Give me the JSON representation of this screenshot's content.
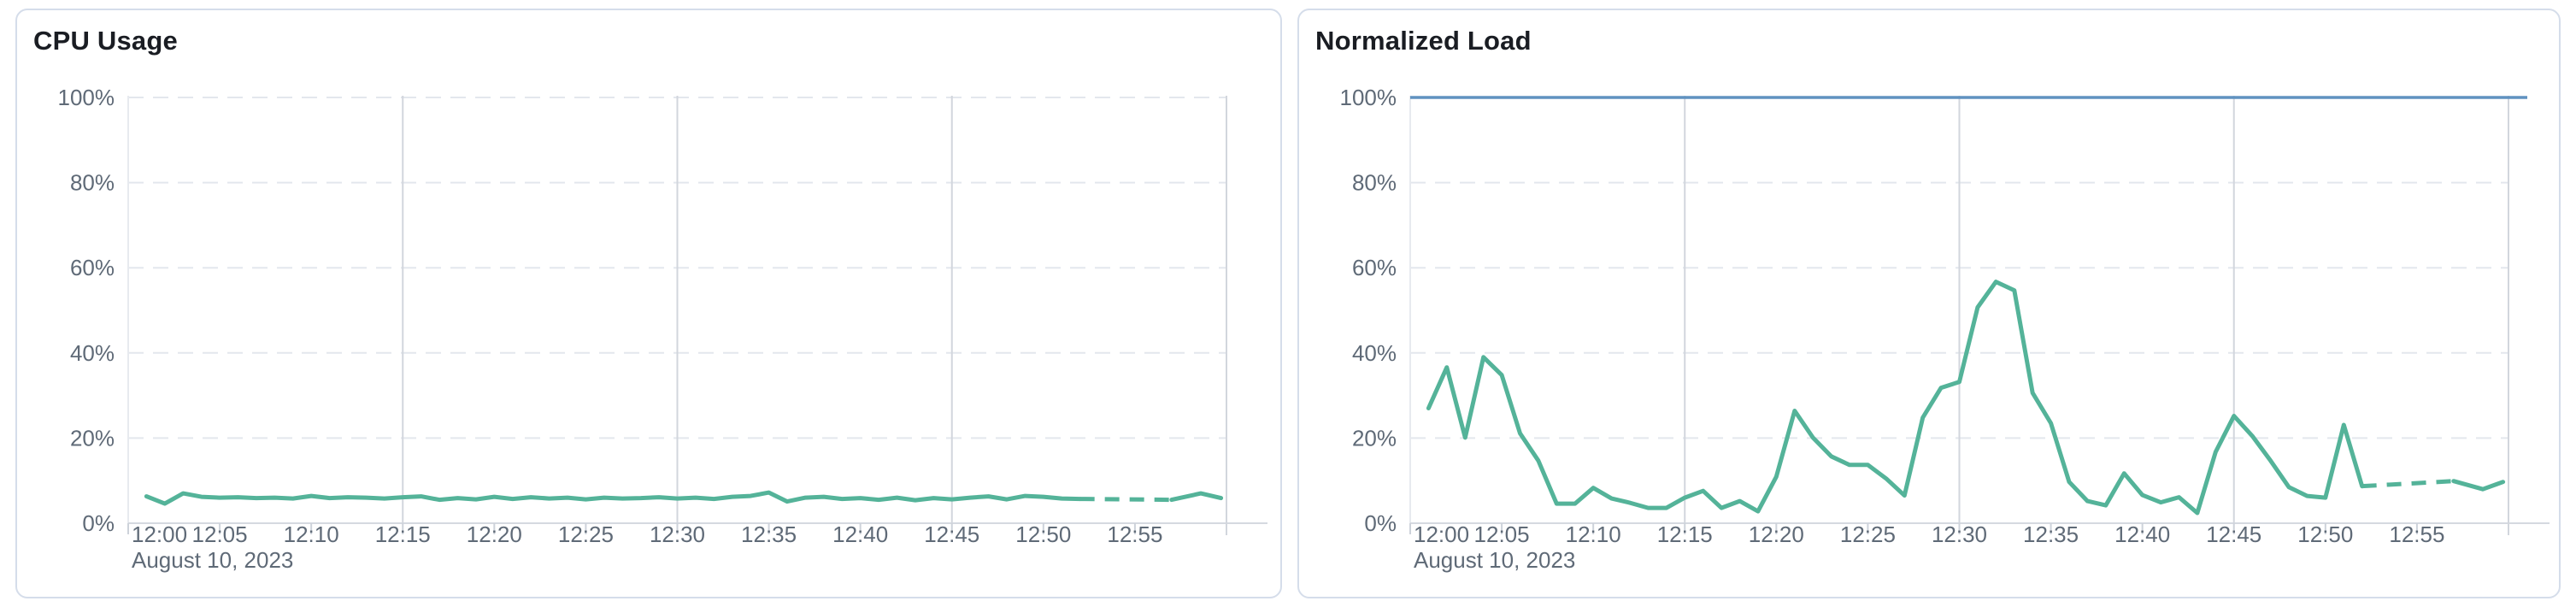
{
  "panels": [
    {
      "title": "CPU Usage"
    },
    {
      "title": "Normalized Load"
    }
  ],
  "date_annotation": "August 10, 2023",
  "colors": {
    "series_green": "#54B399",
    "limit_blue": "#6092C0",
    "grid_dashed": "#E3E7ED",
    "grid_vertical": "#D2D6DD",
    "axis_left_border": "#E7EAEF",
    "baseline": "#D5D9E0",
    "tick": "#CDD2DA",
    "label_text": "#5F6A77",
    "title_text": "#1A1D23",
    "panel_border": "#D5DDEA",
    "background": "#FFFFFF"
  },
  "chart_data": [
    {
      "type": "line",
      "title": "CPU Usage",
      "x_axis_date": "August 10, 2023",
      "x_tick_labels": [
        "12:00",
        "12:05",
        "12:10",
        "12:15",
        "12:20",
        "12:25",
        "12:30",
        "12:35",
        "12:40",
        "12:45",
        "12:50",
        "12:55"
      ],
      "x_tick_minutes": [
        0,
        5,
        10,
        15,
        20,
        25,
        30,
        35,
        40,
        45,
        50,
        55
      ],
      "x_domain_minutes": [
        0,
        60
      ],
      "ylim": [
        0,
        100
      ],
      "y_tick_labels": [
        "0%",
        "20%",
        "40%",
        "60%",
        "80%",
        "100%"
      ],
      "y_tick_values": [
        0,
        20,
        40,
        60,
        80,
        100
      ],
      "grid": "horizontal-dashed, vertical solid every 15 min",
      "legend": "none",
      "series": [
        {
          "name": "cpu-usage-percent",
          "color": "#54B399",
          "style": "solid with dashed interpolated gap 12:52-12:57",
          "dashed_gap_minutes": [
            52,
            57
          ],
          "points_minute_pct": [
            [
              1,
              6.3
            ],
            [
              2,
              4.6
            ],
            [
              3,
              7.0
            ],
            [
              4,
              6.2
            ],
            [
              5,
              6.0
            ],
            [
              6,
              6.1
            ],
            [
              7,
              5.9
            ],
            [
              8,
              6.0
            ],
            [
              9,
              5.8
            ],
            [
              10,
              6.4
            ],
            [
              11,
              5.9
            ],
            [
              12,
              6.1
            ],
            [
              13,
              6.0
            ],
            [
              14,
              5.8
            ],
            [
              15,
              6.1
            ],
            [
              16,
              6.3
            ],
            [
              17,
              5.5
            ],
            [
              18,
              5.9
            ],
            [
              19,
              5.6
            ],
            [
              20,
              6.2
            ],
            [
              21,
              5.7
            ],
            [
              22,
              6.1
            ],
            [
              23,
              5.8
            ],
            [
              24,
              6.0
            ],
            [
              25,
              5.6
            ],
            [
              26,
              6.0
            ],
            [
              27,
              5.8
            ],
            [
              28,
              5.9
            ],
            [
              29,
              6.1
            ],
            [
              30,
              5.8
            ],
            [
              31,
              6.0
            ],
            [
              32,
              5.7
            ],
            [
              33,
              6.2
            ],
            [
              34,
              6.4
            ],
            [
              35,
              7.2
            ],
            [
              36,
              5.1
            ],
            [
              37,
              6.0
            ],
            [
              38,
              6.2
            ],
            [
              39,
              5.7
            ],
            [
              40,
              5.9
            ],
            [
              41,
              5.5
            ],
            [
              42,
              6.0
            ],
            [
              43,
              5.4
            ],
            [
              44,
              5.9
            ],
            [
              45,
              5.6
            ],
            [
              46,
              6.0
            ],
            [
              47,
              6.3
            ],
            [
              48,
              5.6
            ],
            [
              49,
              6.4
            ],
            [
              50,
              6.2
            ],
            [
              51,
              5.8
            ],
            [
              52,
              5.7
            ],
            [
              57,
              5.5
            ],
            [
              58.6,
              7.0
            ],
            [
              59.7,
              5.9
            ]
          ]
        }
      ]
    },
    {
      "type": "line",
      "title": "Normalized Load",
      "x_axis_date": "August 10, 2023",
      "x_tick_labels": [
        "12:00",
        "12:05",
        "12:10",
        "12:15",
        "12:20",
        "12:25",
        "12:30",
        "12:35",
        "12:40",
        "12:45",
        "12:50",
        "12:55"
      ],
      "x_tick_minutes": [
        0,
        5,
        10,
        15,
        20,
        25,
        30,
        35,
        40,
        45,
        50,
        55
      ],
      "x_domain_minutes": [
        0,
        60
      ],
      "ylim": [
        0,
        100
      ],
      "y_tick_labels": [
        "0%",
        "20%",
        "40%",
        "60%",
        "80%",
        "100%"
      ],
      "y_tick_values": [
        0,
        20,
        40,
        60,
        80,
        100
      ],
      "grid": "horizontal-dashed, vertical solid every 15 min",
      "legend": "none",
      "series": [
        {
          "name": "normalized-load-percent",
          "color": "#54B399",
          "style": "solid with dashed interpolated gap 12:52-12:57",
          "dashed_gap_minutes": [
            52,
            57
          ],
          "points_minute_pct": [
            [
              1,
              27.0
            ],
            [
              2,
              36.6
            ],
            [
              3,
              20.1
            ],
            [
              4,
              39.0
            ],
            [
              5,
              34.8
            ],
            [
              6,
              21.1
            ],
            [
              7,
              14.7
            ],
            [
              8,
              4.6
            ],
            [
              9,
              4.6
            ],
            [
              10,
              8.3
            ],
            [
              11,
              5.8
            ],
            [
              12,
              4.8
            ],
            [
              13,
              3.6
            ],
            [
              14,
              3.6
            ],
            [
              15,
              6.0
            ],
            [
              16,
              7.6
            ],
            [
              17,
              3.6
            ],
            [
              18,
              5.2
            ],
            [
              19,
              2.8
            ],
            [
              20,
              10.9
            ],
            [
              21,
              26.4
            ],
            [
              22,
              20.1
            ],
            [
              23,
              15.7
            ],
            [
              24,
              13.7
            ],
            [
              25,
              13.7
            ],
            [
              26,
              10.5
            ],
            [
              27,
              6.5
            ],
            [
              28,
              24.8
            ],
            [
              29,
              31.8
            ],
            [
              30,
              33.2
            ],
            [
              31,
              50.7
            ],
            [
              32,
              56.7
            ],
            [
              33,
              54.7
            ],
            [
              34,
              30.6
            ],
            [
              35,
              23.5
            ],
            [
              36,
              9.7
            ],
            [
              37,
              5.2
            ],
            [
              38,
              4.2
            ],
            [
              39,
              11.7
            ],
            [
              40,
              6.6
            ],
            [
              41,
              4.9
            ],
            [
              42,
              6.1
            ],
            [
              43,
              2.4
            ],
            [
              44,
              16.7
            ],
            [
              45,
              25.2
            ],
            [
              46,
              20.5
            ],
            [
              47,
              14.7
            ],
            [
              48,
              8.5
            ],
            [
              49,
              6.4
            ],
            [
              50,
              6.0
            ],
            [
              51,
              23.1
            ],
            [
              52,
              8.7
            ],
            [
              57,
              9.9
            ],
            [
              58.6,
              8.0
            ],
            [
              59.7,
              9.7
            ]
          ]
        },
        {
          "name": "limit-100-percent",
          "color": "#6092C0",
          "style": "solid horizontal line",
          "constant_value_pct": 100
        }
      ]
    }
  ]
}
